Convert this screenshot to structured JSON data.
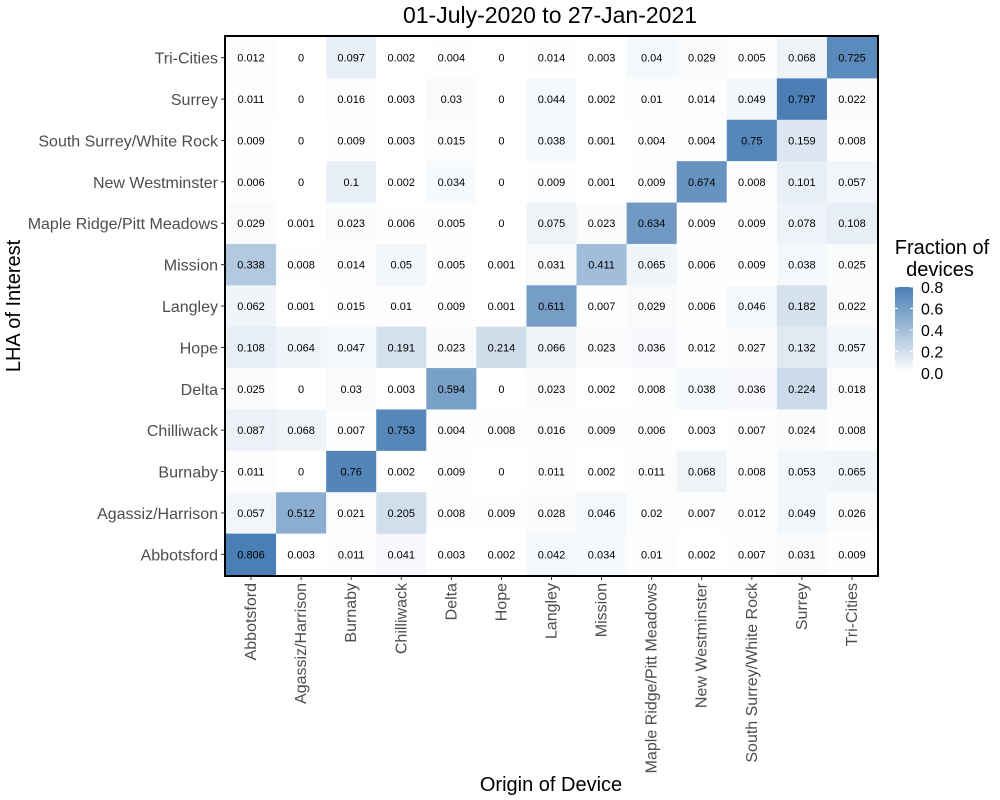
{
  "chart_data": {
    "type": "heatmap",
    "title": "01-July-2020 to 27-Jan-2021",
    "xlabel": "Origin of Device",
    "ylabel": "LHA of Interest",
    "x_categories": [
      "Abbotsford",
      "Agassiz/Harrison",
      "Burnaby",
      "Chilliwack",
      "Delta",
      "Hope",
      "Langley",
      "Mission",
      "Maple Ridge/Pitt Meadows",
      "New Westminster",
      "South Surrey/White Rock",
      "Surrey",
      "Tri-Cities"
    ],
    "y_categories": [
      "Tri-Cities",
      "Surrey",
      "South Surrey/White Rock",
      "New Westminster",
      "Maple Ridge/Pitt Meadows",
      "Mission",
      "Langley",
      "Hope",
      "Delta",
      "Chilliwack",
      "Burnaby",
      "Agassiz/Harrison",
      "Abbotsford"
    ],
    "values": [
      [
        "0.012",
        "0",
        "0.097",
        "0.002",
        "0.004",
        "0",
        "0.014",
        "0.003",
        "0.04",
        "0.029",
        "0.005",
        "0.068",
        "0.725"
      ],
      [
        "0.011",
        "0",
        "0.016",
        "0.003",
        "0.03",
        "0",
        "0.044",
        "0.002",
        "0.01",
        "0.014",
        "0.049",
        "0.797",
        "0.022"
      ],
      [
        "0.009",
        "0",
        "0.009",
        "0.003",
        "0.015",
        "0",
        "0.038",
        "0.001",
        "0.004",
        "0.004",
        "0.75",
        "0.159",
        "0.008"
      ],
      [
        "0.006",
        "0",
        "0.1",
        "0.002",
        "0.034",
        "0",
        "0.009",
        "0.001",
        "0.009",
        "0.674",
        "0.008",
        "0.101",
        "0.057"
      ],
      [
        "0.029",
        "0.001",
        "0.023",
        "0.006",
        "0.005",
        "0",
        "0.075",
        "0.023",
        "0.634",
        "0.009",
        "0.009",
        "0.078",
        "0.108"
      ],
      [
        "0.338",
        "0.008",
        "0.014",
        "0.05",
        "0.005",
        "0.001",
        "0.031",
        "0.411",
        "0.065",
        "0.006",
        "0.009",
        "0.038",
        "0.025"
      ],
      [
        "0.062",
        "0.001",
        "0.015",
        "0.01",
        "0.009",
        "0.001",
        "0.611",
        "0.007",
        "0.029",
        "0.006",
        "0.046",
        "0.182",
        "0.022"
      ],
      [
        "0.108",
        "0.064",
        "0.047",
        "0.191",
        "0.023",
        "0.214",
        "0.066",
        "0.023",
        "0.036",
        "0.012",
        "0.027",
        "0.132",
        "0.057"
      ],
      [
        "0.025",
        "0",
        "0.03",
        "0.003",
        "0.594",
        "0",
        "0.023",
        "0.002",
        "0.008",
        "0.038",
        "0.036",
        "0.224",
        "0.018"
      ],
      [
        "0.087",
        "0.068",
        "0.007",
        "0.753",
        "0.004",
        "0.008",
        "0.016",
        "0.009",
        "0.006",
        "0.003",
        "0.007",
        "0.024",
        "0.008"
      ],
      [
        "0.011",
        "0",
        "0.76",
        "0.002",
        "0.009",
        "0",
        "0.011",
        "0.002",
        "0.011",
        "0.068",
        "0.008",
        "0.053",
        "0.065"
      ],
      [
        "0.057",
        "0.512",
        "0.021",
        "0.205",
        "0.008",
        "0.009",
        "0.028",
        "0.046",
        "0.02",
        "0.007",
        "0.012",
        "0.049",
        "0.026"
      ],
      [
        "0.806",
        "0.003",
        "0.011",
        "0.041",
        "0.003",
        "0.002",
        "0.042",
        "0.034",
        "0.01",
        "0.002",
        "0.007",
        "0.031",
        "0.009"
      ]
    ],
    "legend": {
      "title_lines": [
        "Fraction of",
        "devices"
      ],
      "ticks": [
        "0.8",
        "0.6",
        "0.4",
        "0.2",
        "0.0"
      ],
      "range": [
        0,
        0.8
      ],
      "low_color": "#ffffff",
      "high_color": "#4a7fb5",
      "placement": "right"
    },
    "grid": false
  }
}
